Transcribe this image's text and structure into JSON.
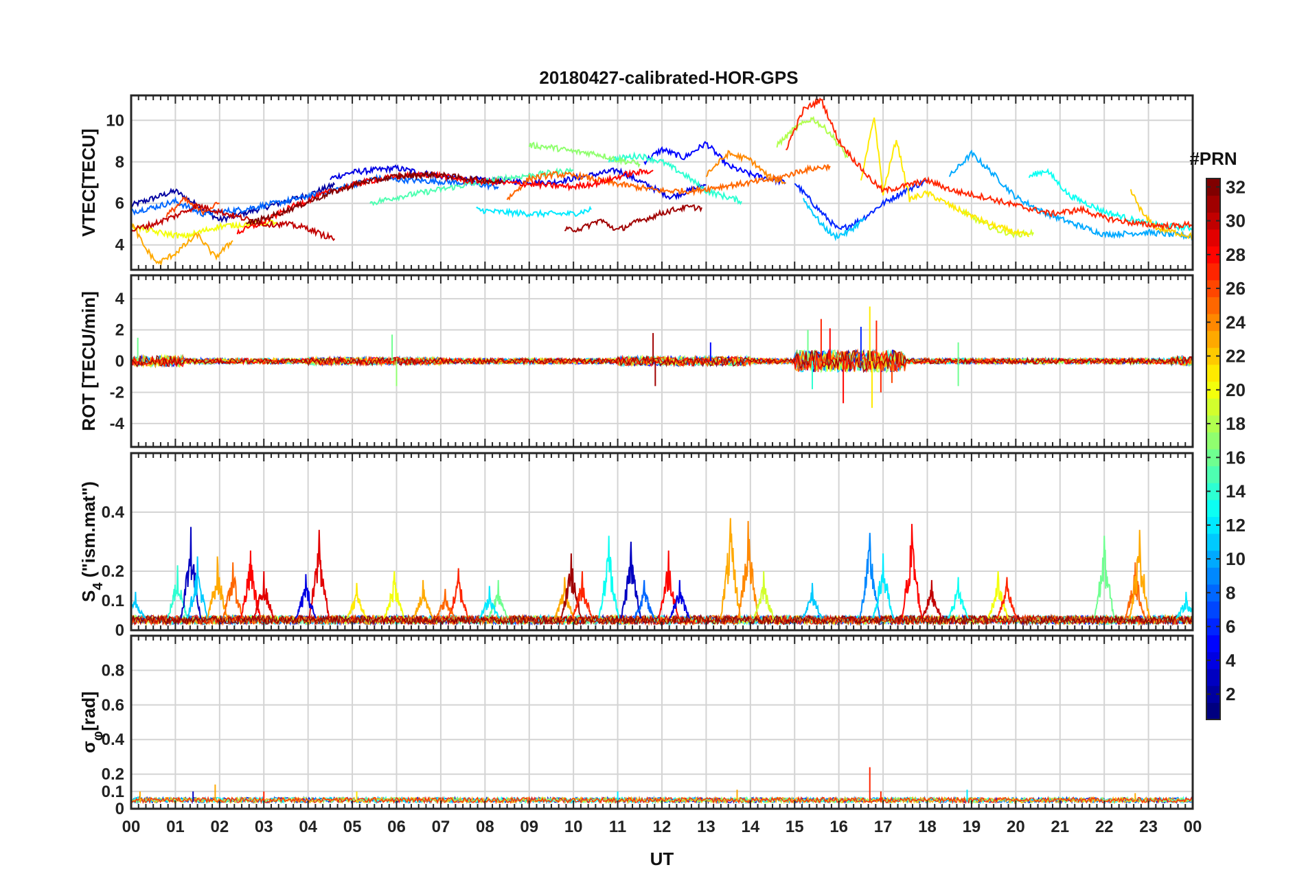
{
  "figure_title": "20180427-calibrated-HOR-GPS",
  "colors": {
    "grid": "#d4d4d4",
    "axis": "#262626",
    "background": "#ffffff"
  },
  "chart_data": [
    {
      "id": "vtec",
      "type": "line",
      "title": "20180427-calibrated-HOR-GPS",
      "ylabel": "VTEC[TECU]",
      "ylim": [
        2.8,
        11.2
      ],
      "yticks": [
        4,
        6,
        8,
        10
      ],
      "ytick_labels": [
        "4",
        "6",
        "8",
        "10"
      ],
      "grid": true,
      "series": [
        {
          "name": "PRN 2",
          "prn": 2,
          "x": [
            0,
            1,
            2,
            3,
            4,
            4.6
          ],
          "values": [
            5.9,
            6.6,
            5.2,
            5.8,
            6.4,
            6.9
          ]
        },
        {
          "name": "PRN 4",
          "prn": 4,
          "x": [
            4.5,
            5,
            6,
            7,
            8,
            9.5,
            11,
            12.2,
            13
          ],
          "values": [
            7.2,
            7.5,
            7.7,
            7.3,
            7.1,
            7.0,
            7.6,
            6.3,
            6.9
          ]
        },
        {
          "name": "PRN 5",
          "prn": 5,
          "x": [
            11.6,
            12,
            12.5,
            13,
            13.5,
            14,
            14.8
          ],
          "values": [
            8.0,
            8.6,
            8.2,
            8.9,
            7.8,
            7.4,
            7.0
          ]
        },
        {
          "name": "PRN 6",
          "prn": 6,
          "x": [
            15,
            15.5,
            16,
            16.5,
            17,
            17.5,
            18
          ],
          "values": [
            7.0,
            5.8,
            4.7,
            5.2,
            6.0,
            6.6,
            7.1
          ]
        },
        {
          "name": "PRN 8",
          "prn": 8,
          "x": [
            0,
            0.5,
            1,
            1.6,
            2.5,
            3.5,
            4.5,
            5.5,
            6.5,
            7.5,
            8.3
          ],
          "values": [
            5.6,
            5.8,
            6.1,
            5.5,
            5.7,
            6.1,
            6.6,
            7.2,
            7.1,
            7.0,
            6.8
          ]
        },
        {
          "name": "PRN 10",
          "prn": 10,
          "x": [
            18.5,
            19,
            19.5,
            20,
            20.6,
            21.2,
            22,
            23,
            24
          ],
          "values": [
            7.3,
            8.4,
            7.4,
            6.3,
            5.6,
            5.1,
            4.5,
            4.6,
            4.4
          ]
        },
        {
          "name": "PRN 11",
          "prn": 11,
          "x": [
            15.2,
            15.6,
            15.9,
            16.2,
            16.6
          ],
          "values": [
            6.2,
            5.0,
            4.4,
            4.6,
            5.3
          ]
        },
        {
          "name": "PRN 12",
          "prn": 12,
          "x": [
            7.8,
            8.2,
            9,
            10,
            10.4
          ],
          "values": [
            5.7,
            5.6,
            5.5,
            5.5,
            5.7
          ]
        },
        {
          "name": "PRN 13",
          "prn": 13,
          "x": [
            20.3,
            20.7,
            21.2,
            22,
            23,
            24
          ],
          "values": [
            7.3,
            7.6,
            6.4,
            5.6,
            5.0,
            4.8
          ]
        },
        {
          "name": "PRN 14",
          "prn": 14,
          "x": [
            10.8,
            11.5,
            12,
            12.5,
            13,
            13.8
          ],
          "values": [
            8.1,
            8.3,
            8.0,
            7.4,
            6.6,
            6.1
          ]
        },
        {
          "name": "PRN 15",
          "prn": 15,
          "x": [
            5.4,
            6,
            6.8,
            7.6,
            8.4,
            9.2,
            10
          ],
          "values": [
            6.0,
            6.3,
            6.6,
            6.9,
            7.2,
            7.4,
            7.6
          ]
        },
        {
          "name": "PRN 17",
          "prn": 17,
          "x": [
            9.0,
            9.5,
            10,
            10.5,
            11,
            11.5
          ],
          "values": [
            8.8,
            8.7,
            8.5,
            8.4,
            8.1,
            7.9
          ]
        },
        {
          "name": "PRN 18",
          "prn": 18,
          "x": [
            14.6,
            15,
            15.4,
            15.8,
            16.2
          ],
          "values": [
            8.8,
            9.6,
            10.1,
            9.4,
            8.2
          ]
        },
        {
          "name": "PRN 19",
          "prn": 19,
          "x": [
            18.8,
            19.2,
            19.6,
            20,
            20.4
          ],
          "values": [
            5.6,
            5.1,
            4.7,
            4.5,
            4.6
          ]
        },
        {
          "name": "PRN 20",
          "prn": 20,
          "x": [
            0,
            0.6,
            1.2,
            2,
            2.7,
            3.3
          ],
          "values": [
            4.9,
            4.6,
            4.4,
            4.9,
            5.0,
            5.1
          ]
        },
        {
          "name": "PRN 21",
          "prn": 21,
          "x": [
            16.5,
            16.8,
            17,
            17.3,
            17.6,
            18,
            18.6,
            19.4,
            20.3
          ],
          "values": [
            7.0,
            10.2,
            6.5,
            9.1,
            6.2,
            6.5,
            5.8,
            5.0,
            4.4
          ]
        },
        {
          "name": "PRN 22",
          "prn": 22,
          "x": [
            22.6,
            22.9,
            23.2,
            23.6,
            24
          ],
          "values": [
            6.6,
            5.4,
            4.8,
            4.6,
            4.4
          ]
        },
        {
          "name": "PRN 23",
          "prn": 23,
          "x": [
            0,
            0.3,
            0.6,
            1,
            1.5,
            1.9,
            2.3
          ],
          "values": [
            5.1,
            3.9,
            3.1,
            3.6,
            4.5,
            3.4,
            4.2
          ]
        },
        {
          "name": "PRN 24",
          "prn": 24,
          "x": [
            13,
            13.5,
            14,
            14.4,
            14.8
          ],
          "values": [
            7.4,
            8.4,
            8.1,
            7.3,
            7.0
          ]
        },
        {
          "name": "PRN 25",
          "prn": 25,
          "x": [
            8.5,
            9,
            9.6,
            10.2,
            10.8,
            11.4,
            12,
            12.7,
            13.3,
            14,
            14.6,
            15.2,
            15.8
          ],
          "values": [
            6.2,
            7.2,
            7.4,
            7.3,
            7.0,
            6.8,
            6.6,
            6.6,
            6.8,
            7.0,
            7.2,
            7.6,
            7.8
          ]
        },
        {
          "name": "PRN 26",
          "prn": 26,
          "x": [
            0.8,
            1.2,
            1.6,
            2.0
          ],
          "values": [
            5.4,
            6.2,
            5.6,
            6.0
          ]
        },
        {
          "name": "PRN 27",
          "prn": 27,
          "x": [
            14.8,
            15.2,
            15.6,
            16,
            16.3,
            16.7,
            17,
            17.4,
            18,
            18.6,
            19.3,
            20,
            20.8,
            21.5,
            22,
            22.8,
            23.5,
            24
          ],
          "values": [
            8.6,
            10.5,
            11.0,
            9.0,
            8.2,
            7.2,
            6.6,
            6.8,
            7.1,
            6.6,
            6.3,
            5.9,
            5.5,
            5.7,
            5.3,
            5.0,
            4.9,
            5.0
          ]
        },
        {
          "name": "PRN 28",
          "prn": 28,
          "x": [
            2.4,
            3,
            3.6,
            4.4,
            5.2,
            6,
            6.8,
            7.6,
            8.4,
            9.2,
            10,
            10.6,
            11.2,
            11.8
          ],
          "values": [
            4.6,
            5.1,
            5.8,
            6.5,
            7.0,
            7.3,
            7.4,
            7.1,
            7.0,
            6.9,
            6.8,
            7.0,
            7.4,
            7.6
          ]
        },
        {
          "name": "PRN 30",
          "prn": 30,
          "x": [
            0,
            0.5,
            1,
            1.5,
            2,
            2.5,
            3,
            3.5,
            4,
            4.3,
            4.6
          ],
          "values": [
            4.7,
            5.0,
            5.4,
            5.9,
            5.6,
            5.3,
            5.0,
            5.0,
            4.8,
            4.5,
            4.3
          ]
        },
        {
          "name": "PRN 31",
          "prn": 31,
          "x": [
            9.8,
            10.2,
            10.6,
            11,
            11.3,
            11.7,
            12.1,
            12.5,
            12.9
          ],
          "values": [
            4.7,
            4.8,
            5.2,
            4.7,
            5.0,
            5.3,
            5.6,
            5.8,
            5.8
          ]
        },
        {
          "name": "PRN 32",
          "prn": 32,
          "x": [
            2.6,
            3.2,
            3.8,
            4.5,
            5.2,
            6,
            6.8,
            7.6,
            8.4
          ],
          "values": [
            5.0,
            5.4,
            5.9,
            6.5,
            7.0,
            7.3,
            7.4,
            7.2,
            7.0
          ]
        }
      ]
    },
    {
      "id": "rot",
      "type": "line",
      "ylabel": "ROT [TECU/min]",
      "ylim": [
        -5.5,
        5.5
      ],
      "yticks": [
        -4,
        -2,
        0,
        2,
        4
      ],
      "ytick_labels": [
        "-4",
        "-2",
        "0",
        "2",
        "4"
      ],
      "grid": true,
      "spikes": [
        {
          "x": 0.15,
          "value": 1.5,
          "prn": 16
        },
        {
          "x": 5.9,
          "value": 1.7,
          "prn": 16
        },
        {
          "x": 6.0,
          "value": -1.6,
          "prn": 17
        },
        {
          "x": 11.8,
          "value": 1.8,
          "prn": 31
        },
        {
          "x": 11.85,
          "value": -1.6,
          "prn": 31
        },
        {
          "x": 13.1,
          "value": 1.2,
          "prn": 5
        },
        {
          "x": 15.3,
          "value": 2.0,
          "prn": 16
        },
        {
          "x": 15.4,
          "value": -1.8,
          "prn": 14
        },
        {
          "x": 15.6,
          "value": 2.7,
          "prn": 27
        },
        {
          "x": 15.8,
          "value": 2.1,
          "prn": 28
        },
        {
          "x": 16.1,
          "value": -2.7,
          "prn": 28
        },
        {
          "x": 16.5,
          "value": 2.2,
          "prn": 6
        },
        {
          "x": 16.7,
          "value": 3.5,
          "prn": 21
        },
        {
          "x": 16.75,
          "value": -3.0,
          "prn": 21
        },
        {
          "x": 16.85,
          "value": 2.6,
          "prn": 27
        },
        {
          "x": 16.95,
          "value": -2.0,
          "prn": 27
        },
        {
          "x": 17.2,
          "value": -1.4,
          "prn": 26
        },
        {
          "x": 18.7,
          "value": 1.2,
          "prn": 16
        },
        {
          "x": 18.7,
          "value": -1.6,
          "prn": 16
        },
        {
          "x": 24.0,
          "value": -1.2,
          "prn": 11
        }
      ]
    },
    {
      "id": "s4",
      "type": "line",
      "ylabel": "S4 (\"ism.mat\")",
      "ylabel_main": "S",
      "ylabel_sub": "4",
      "ylabel_rest": " (\"ism.mat\")",
      "ylim": [
        0,
        0.6
      ],
      "yticks": [
        0,
        0.1,
        0.2,
        0.4
      ],
      "ytick_labels": [
        "0",
        "0.1",
        "0.2",
        "0.4"
      ],
      "grid": true,
      "peaks": [
        {
          "x": 0.1,
          "value": 0.13,
          "prn": 11
        },
        {
          "x": 1.05,
          "value": 0.22,
          "prn": 14
        },
        {
          "x": 1.35,
          "value": 0.35,
          "prn": 3
        },
        {
          "x": 1.5,
          "value": 0.25,
          "prn": 11
        },
        {
          "x": 1.95,
          "value": 0.25,
          "prn": 23
        },
        {
          "x": 2.3,
          "value": 0.23,
          "prn": 25
        },
        {
          "x": 2.7,
          "value": 0.27,
          "prn": 28
        },
        {
          "x": 3.0,
          "value": 0.2,
          "prn": 29
        },
        {
          "x": 4.25,
          "value": 0.34,
          "prn": 29
        },
        {
          "x": 3.95,
          "value": 0.19,
          "prn": 4
        },
        {
          "x": 5.1,
          "value": 0.16,
          "prn": 21
        },
        {
          "x": 5.95,
          "value": 0.2,
          "prn": 20
        },
        {
          "x": 6.6,
          "value": 0.17,
          "prn": 23
        },
        {
          "x": 7.4,
          "value": 0.21,
          "prn": 27
        },
        {
          "x": 7.1,
          "value": 0.14,
          "prn": 25
        },
        {
          "x": 8.3,
          "value": 0.17,
          "prn": 16
        },
        {
          "x": 8.1,
          "value": 0.15,
          "prn": 12
        },
        {
          "x": 9.8,
          "value": 0.18,
          "prn": 23
        },
        {
          "x": 9.95,
          "value": 0.26,
          "prn": 31
        },
        {
          "x": 10.2,
          "value": 0.2,
          "prn": 27
        },
        {
          "x": 10.8,
          "value": 0.32,
          "prn": 13
        },
        {
          "x": 11.3,
          "value": 0.3,
          "prn": 3
        },
        {
          "x": 11.6,
          "value": 0.17,
          "prn": 8
        },
        {
          "x": 12.15,
          "value": 0.27,
          "prn": 28
        },
        {
          "x": 12.4,
          "value": 0.17,
          "prn": 4
        },
        {
          "x": 13.55,
          "value": 0.38,
          "prn": 23
        },
        {
          "x": 13.95,
          "value": 0.37,
          "prn": 24
        },
        {
          "x": 14.3,
          "value": 0.2,
          "prn": 19
        },
        {
          "x": 15.4,
          "value": 0.16,
          "prn": 11
        },
        {
          "x": 16.7,
          "value": 0.33,
          "prn": 9
        },
        {
          "x": 17.0,
          "value": 0.26,
          "prn": 12
        },
        {
          "x": 17.65,
          "value": 0.36,
          "prn": 28
        },
        {
          "x": 18.1,
          "value": 0.17,
          "prn": 30
        },
        {
          "x": 18.7,
          "value": 0.18,
          "prn": 13
        },
        {
          "x": 19.6,
          "value": 0.2,
          "prn": 20
        },
        {
          "x": 19.8,
          "value": 0.18,
          "prn": 27
        },
        {
          "x": 22.0,
          "value": 0.32,
          "prn": 16
        },
        {
          "x": 22.7,
          "value": 0.23,
          "prn": 25
        },
        {
          "x": 22.8,
          "value": 0.34,
          "prn": 23
        },
        {
          "x": 23.85,
          "value": 0.13,
          "prn": 12
        }
      ]
    },
    {
      "id": "sigma",
      "type": "line",
      "ylabel": "σφ[rad]",
      "ylabel_main": "σ",
      "ylabel_sub": "φ",
      "ylabel_rest": "[rad]",
      "ylim": [
        0,
        1.0
      ],
      "yticks": [
        0,
        0.1,
        0.2,
        0.4,
        0.6,
        0.8
      ],
      "ytick_labels": [
        "0",
        "0.1",
        "0.2",
        "0.4",
        "0.6",
        "0.8"
      ],
      "grid": true,
      "peaks": [
        {
          "x": 0.2,
          "value": 0.1,
          "prn": 23
        },
        {
          "x": 1.4,
          "value": 0.1,
          "prn": 3
        },
        {
          "x": 1.9,
          "value": 0.14,
          "prn": 23
        },
        {
          "x": 3.0,
          "value": 0.1,
          "prn": 27
        },
        {
          "x": 5.1,
          "value": 0.1,
          "prn": 21
        },
        {
          "x": 11.0,
          "value": 0.1,
          "prn": 12
        },
        {
          "x": 13.7,
          "value": 0.11,
          "prn": 23
        },
        {
          "x": 16.7,
          "value": 0.24,
          "prn": 27
        },
        {
          "x": 16.95,
          "value": 0.1,
          "prn": 27
        },
        {
          "x": 18.9,
          "value": 0.11,
          "prn": 12
        },
        {
          "x": 22.7,
          "value": 0.09,
          "prn": 23
        }
      ]
    }
  ],
  "x_axis": {
    "label": "UT",
    "range": [
      0,
      24
    ],
    "ticks": [
      0,
      1,
      2,
      3,
      4,
      5,
      6,
      7,
      8,
      9,
      10,
      11,
      12,
      13,
      14,
      15,
      16,
      17,
      18,
      19,
      20,
      21,
      22,
      23,
      24
    ],
    "tick_labels": [
      "00",
      "01",
      "02",
      "03",
      "04",
      "05",
      "06",
      "07",
      "08",
      "09",
      "10",
      "11",
      "12",
      "13",
      "14",
      "15",
      "16",
      "17",
      "18",
      "19",
      "20",
      "21",
      "22",
      "23",
      "00"
    ]
  },
  "colorbar": {
    "title": "#PRN",
    "range": [
      1,
      32
    ],
    "ticks": [
      2,
      4,
      6,
      8,
      10,
      12,
      14,
      16,
      18,
      20,
      22,
      24,
      26,
      28,
      30,
      32
    ],
    "tick_labels": [
      "2",
      "4",
      "6",
      "8",
      "10",
      "12",
      "14",
      "16",
      "18",
      "20",
      "22",
      "24",
      "26",
      "28",
      "30",
      "32"
    ],
    "colormap": "jet"
  }
}
